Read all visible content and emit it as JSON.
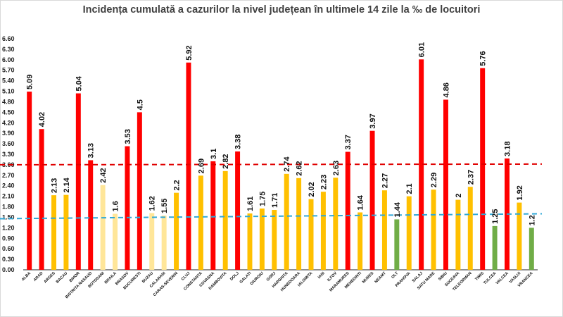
{
  "chart_data": {
    "type": "bar",
    "title": "Incidența cumulată a cazurilor la nivel județean în ultimele 14 zile la ‰ de locuitori",
    "xlabel": "",
    "ylabel": "",
    "ylim": [
      0,
      6.6
    ],
    "yticks": [
      "0.00",
      "0.30",
      "0.60",
      "0.90",
      "1.20",
      "1.50",
      "1.80",
      "2.10",
      "2.40",
      "2.70",
      "3.00",
      "3.30",
      "3.60",
      "3.90",
      "4.20",
      "4.50",
      "4.80",
      "5.10",
      "5.40",
      "5.70",
      "6.00",
      "6.30",
      "6.60"
    ],
    "categories": [
      "ALBA",
      "ARAD",
      "ARGES",
      "BACAU",
      "BIHOR",
      "BISTRITA NASAUD",
      "BOTOSANI",
      "BRAILA",
      "BRASOV",
      "BUCURESTI",
      "BUZAU",
      "CALARASI",
      "CARAS-SEVERIN",
      "CLUJ",
      "CONSTANTA",
      "COVASNA",
      "DAMBOVITA",
      "DOLJ",
      "GALATI",
      "GIURGIU",
      "GORJ",
      "HARGHITA",
      "HUNEDOARA",
      "IALOMITA",
      "IASI",
      "ILFOV",
      "MARAMURES",
      "MEHEDINTI",
      "MURES",
      "NEAMT",
      "OLT",
      "PRAHOVA",
      "SALAJ",
      "SATU MARE",
      "SIBIU",
      "SUCEAVA",
      "TELEORMAN",
      "TIMIS",
      "TULCEA",
      "VALCEA",
      "VASLUI",
      "VRANCEA"
    ],
    "values": [
      5.09,
      4.02,
      2.13,
      2.14,
      5.04,
      3.13,
      2.42,
      1.6,
      3.53,
      4.5,
      1.62,
      1.55,
      2.2,
      5.92,
      2.69,
      3.1,
      2.82,
      3.38,
      1.61,
      1.75,
      1.71,
      2.74,
      2.62,
      2.02,
      2.23,
      2.63,
      3.37,
      1.64,
      3.97,
      2.27,
      1.44,
      2.1,
      6.01,
      2.29,
      4.86,
      2,
      2.37,
      5.76,
      1.25,
      3.18,
      1.92,
      1.2
    ],
    "value_labels": [
      "5.09",
      "4.02",
      "2.13",
      "2.14",
      "5.04",
      "3.13",
      "2.42",
      "1.6",
      "3.53",
      "4.5",
      "1.62",
      "1.55",
      "2.2",
      "5.92",
      "2.69",
      "3.1",
      "2.82",
      "3.38",
      "1.61",
      "1.75",
      "1.71",
      "2.74",
      "2.62",
      "2.02",
      "2.23",
      "2.63",
      "3.37",
      "1.64",
      "3.97",
      "2.27",
      "1.44",
      "2.1",
      "6.01",
      "2.29",
      "4.86",
      "2",
      "2.37",
      "5.76",
      "1.25",
      "3.18",
      "1.92",
      "1.2"
    ],
    "colors": {
      "red": "#ff0000",
      "orange": "#ffc000",
      "light_orange": "#ffe699",
      "green": "#70ad47",
      "red_line": "#e00000",
      "blue_line": "#2fa8d8",
      "axis": "#222222"
    },
    "thresholds": [
      {
        "name": "red-threshold",
        "value": 3.0
      },
      {
        "name": "blue-threshold",
        "value": 1.5
      }
    ]
  }
}
